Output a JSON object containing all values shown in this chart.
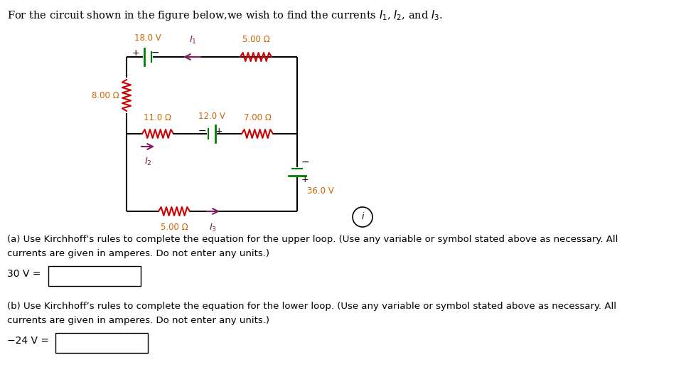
{
  "bg_color": "#ffffff",
  "resistor_color": "#cc0000",
  "battery_color": "#008000",
  "arrow_color": "#7b1f5e",
  "label_color": "#cc6600",
  "text_color": "#000000",
  "circuit_color": "#000000",
  "part_a_text": "(a) Use Kirchhoff’s rules to complete the equation for the upper loop. (Use any variable or symbol stated above as necessary. All\ncurrents are given in amperes. Do not enter any units.)",
  "part_b_text": "(b) Use Kirchhoff’s rules to complete the equation for the lower loop. (Use any variable or symbol stated above as necessary. All\ncurrents are given in amperes. Do not enter any units.)",
  "eq_a": "30 V =",
  "eq_b": "-24 V ="
}
